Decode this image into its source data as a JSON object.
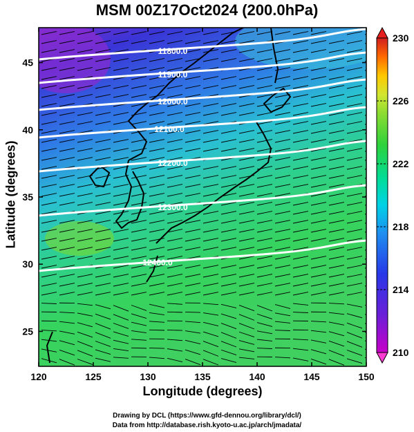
{
  "title": "MSM 00Z17Oct2024 (200.0hPa)",
  "axes": {
    "xlabel": "Longitude (degrees)",
    "ylabel": "Latitude  (degrees)",
    "x_ticks": [
      "120",
      "125",
      "130",
      "135",
      "140",
      "145",
      "150"
    ],
    "y_ticks": [
      "25",
      "30",
      "35",
      "40",
      "45"
    ],
    "xlim": [
      120,
      150
    ],
    "ylim": [
      22.4,
      47.6
    ]
  },
  "colorbar": {
    "ticks": [
      "230",
      "226",
      "222",
      "218",
      "214",
      "210"
    ],
    "range": [
      210,
      230
    ],
    "colors": [
      "#c800c8",
      "#3c3cff",
      "#00c8ff",
      "#00e0a0",
      "#30d030",
      "#c8e632",
      "#ffc800",
      "#ff5000",
      "#d21e1e"
    ]
  },
  "contours": [
    {
      "label": "11800.0"
    },
    {
      "label": "11900.0"
    },
    {
      "label": "12000.0"
    },
    {
      "label": "12100.0"
    },
    {
      "label": "12200.0"
    },
    {
      "label": "12300.0"
    },
    {
      "label": "12400.0"
    }
  ],
  "credits": {
    "line1": "Drawing by DCL (https://www.gfd-dennou.org/library/dcl/)",
    "line2": "Data from http://database.rish.kyoto-u.ac.jp/arch/jmadata/"
  }
}
